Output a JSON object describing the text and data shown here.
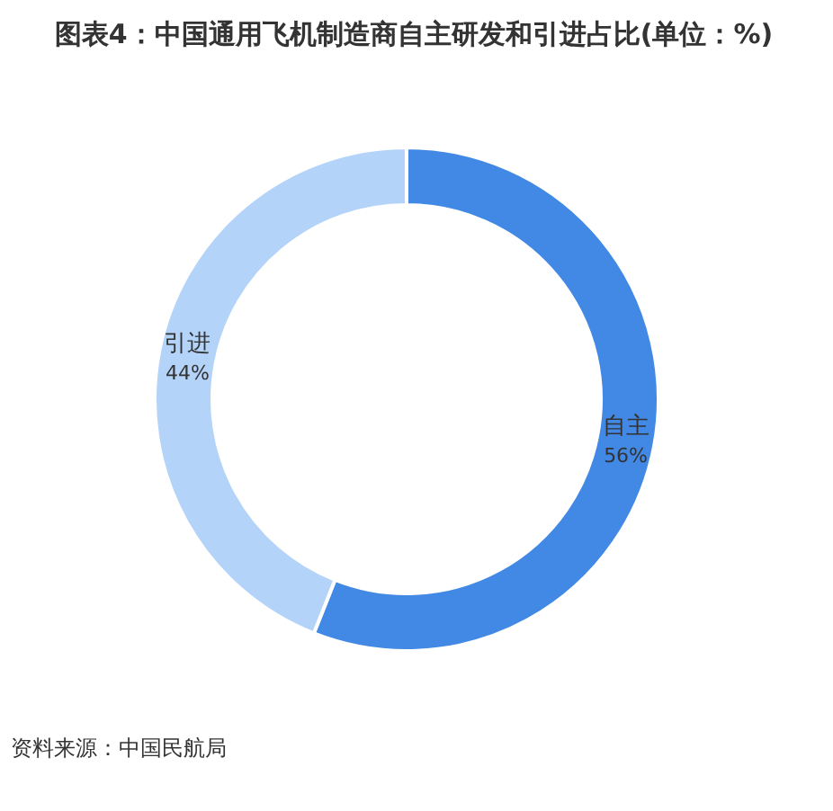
{
  "chart_data": {
    "type": "donut",
    "title": "图表4：中国通用飞机制造商自主研发和引进占比(单位：%)",
    "categories": [
      "自主",
      "引进"
    ],
    "values": [
      56,
      44
    ],
    "value_labels": [
      "56%",
      "44%"
    ],
    "colors": [
      "#4189e4",
      "#b3d3f9"
    ],
    "annotations": [
      "资料来源：中国民航局"
    ]
  }
}
